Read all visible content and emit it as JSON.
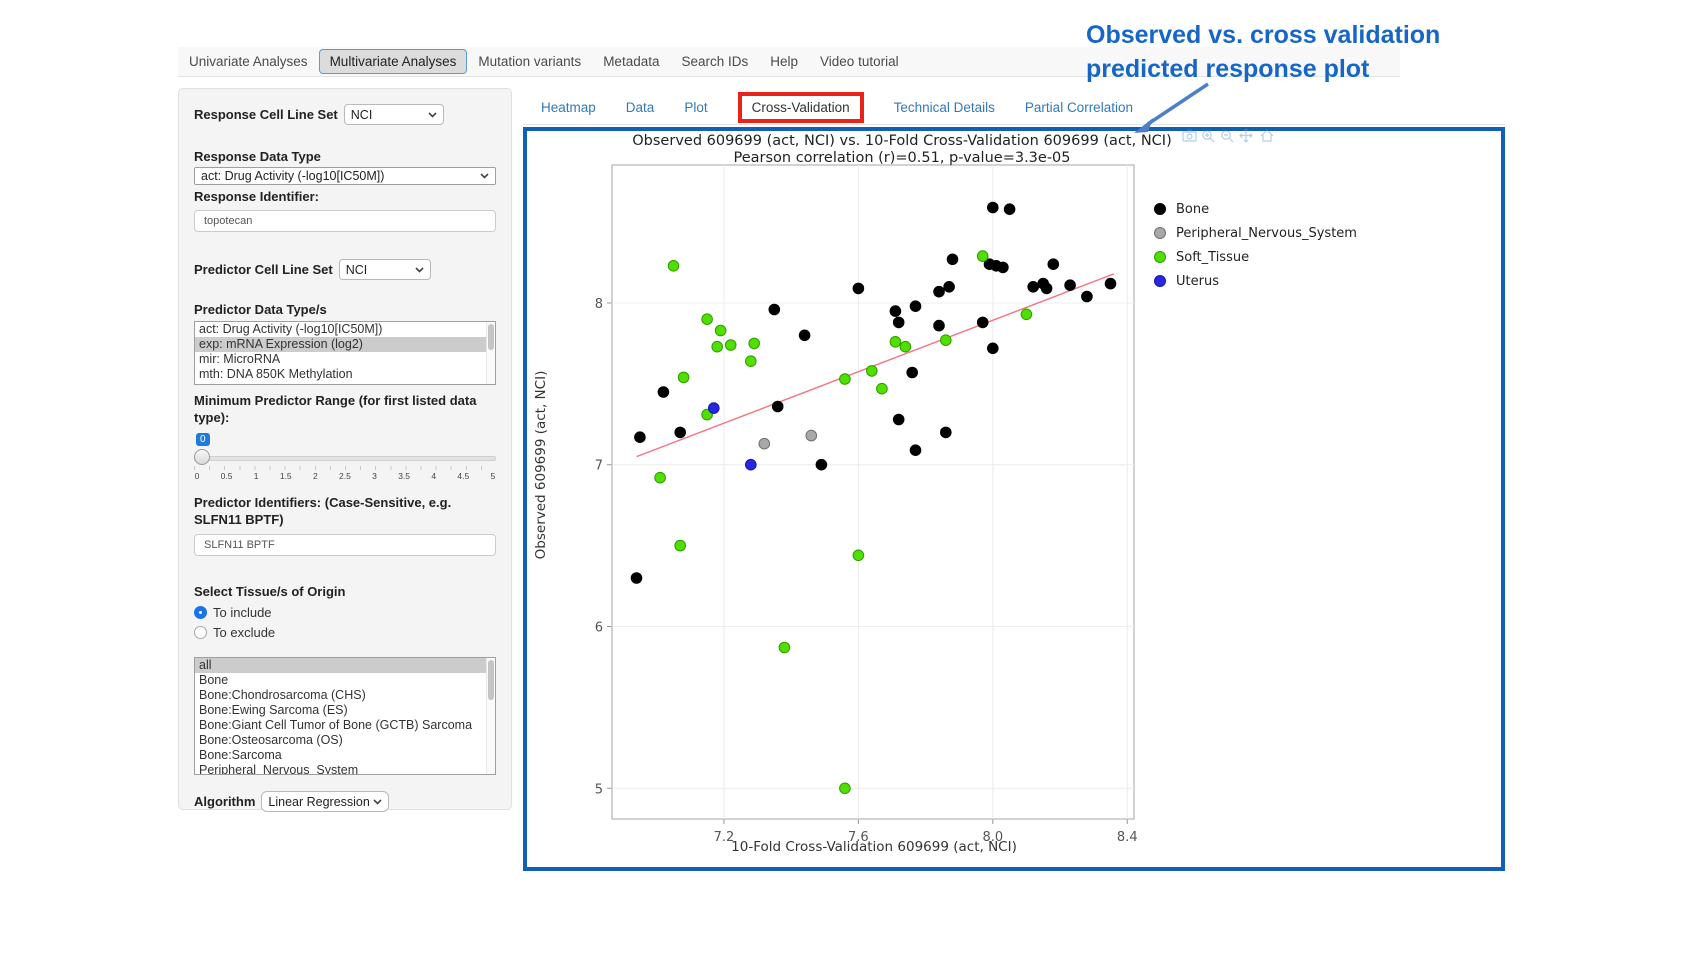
{
  "top_nav": {
    "tabs": [
      {
        "label": "Univariate Analyses",
        "active": false
      },
      {
        "label": "Multivariate Analyses",
        "active": true
      },
      {
        "label": "Mutation variants",
        "active": false
      },
      {
        "label": "Metadata",
        "active": false
      },
      {
        "label": "Search IDs",
        "active": false
      },
      {
        "label": "Help",
        "active": false
      },
      {
        "label": "Video tutorial",
        "active": false
      }
    ]
  },
  "sidebar": {
    "response_cell_line_set": {
      "label": "Response Cell Line Set",
      "value": "NCI"
    },
    "response_data_type": {
      "label": "Response Data Type",
      "value": "act: Drug Activity (-log10[IC50M])"
    },
    "response_identifier": {
      "label": "Response Identifier:",
      "value": "topotecan"
    },
    "predictor_cell_line_set": {
      "label": "Predictor Cell Line Set",
      "value": "NCI"
    },
    "predictor_data_types": {
      "label": "Predictor Data Type/s",
      "options": [
        "act: Drug Activity (-log10[IC50M])",
        "exp: mRNA Expression (log2)",
        "mir: MicroRNA",
        "mth: DNA 850K Methylation"
      ],
      "selected_index": 1
    },
    "min_predictor_range": {
      "label": "Minimum Predictor Range (for first listed data type):",
      "value": "0",
      "tick_labels": [
        "0",
        "0.5",
        "1",
        "1.5",
        "2",
        "2.5",
        "3",
        "3.5",
        "4",
        "4.5",
        "5"
      ]
    },
    "predictor_identifiers": {
      "label": "Predictor Identifiers: (Case-Sensitive, e.g. SLFN11 BPTF)",
      "value": "SLFN11 BPTF"
    },
    "tissue_origin": {
      "label": "Select Tissue/s of Origin",
      "radios": [
        {
          "label": "To include",
          "checked": true
        },
        {
          "label": "To exclude",
          "checked": false
        }
      ],
      "options": [
        "all",
        "Bone",
        "Bone:Chondrosarcoma (CHS)",
        "Bone:Ewing Sarcoma (ES)",
        "Bone:Giant Cell Tumor of Bone (GCTB) Sarcoma",
        "Bone:Osteosarcoma (OS)",
        "Bone:Sarcoma",
        "Peripheral_Nervous_System"
      ],
      "selected_index": 0
    },
    "algorithm": {
      "label": "Algorithm",
      "value": "Linear Regression"
    }
  },
  "result_tabs": {
    "tabs": [
      {
        "label": "Heatmap",
        "active": false
      },
      {
        "label": "Data",
        "active": false
      },
      {
        "label": "Plot",
        "active": false
      },
      {
        "label": "Cross-Validation",
        "active": true
      },
      {
        "label": "Technical Details",
        "active": false
      },
      {
        "label": "Partial Correlation",
        "active": false
      }
    ]
  },
  "annotation": {
    "line1": "Observed vs. cross validation",
    "line2": "predicted response plot"
  },
  "modebar_icons": [
    "camera-icon",
    "zoom-in-icon",
    "zoom-out-icon",
    "pan-icon",
    "home-icon"
  ],
  "colors": {
    "plot_box_border": "#1060b6",
    "active_tab_red_box": "#e8231a",
    "annotation_blue": "#1666c8",
    "tab_link_blue": "#3378b8",
    "slider_badge_blue": "#1f7ae0",
    "trend_line": "#f4727e"
  },
  "chart_data": {
    "type": "scatter",
    "title": "Observed 609699 (act, NCI) vs. 10-Fold Cross-Validation 609699 (act, NCI)",
    "subtitle": "Pearson correlation (r)=0.51, p-value=3.3e-05",
    "xlabel": "10-Fold Cross-Validation 609699 (act, NCI)",
    "ylabel": "Observed 609699 (act, NCI)",
    "xlim": [
      6.867,
      8.42
    ],
    "ylim": [
      4.81,
      8.853
    ],
    "xticks": [
      7.2,
      7.6,
      8.0,
      8.4
    ],
    "xtick_labels": [
      "7.2",
      "7.6",
      "8.0",
      "8.4"
    ],
    "yticks": [
      5,
      6,
      7,
      8
    ],
    "ytick_labels": [
      "5",
      "6",
      "7",
      "8"
    ],
    "grid": true,
    "legend_position": "right",
    "trend_line": {
      "color": "#f4727e",
      "x1": 6.94,
      "y1": 7.05,
      "x2": 8.36,
      "y2": 8.18
    },
    "series": [
      {
        "name": "Bone",
        "color": "#000000",
        "stroke": "#000000",
        "points": [
          [
            6.94,
            6.3
          ],
          [
            6.95,
            7.17
          ],
          [
            7.02,
            7.45
          ],
          [
            7.07,
            7.2
          ],
          [
            7.35,
            7.96
          ],
          [
            7.36,
            7.36
          ],
          [
            7.44,
            7.8
          ],
          [
            7.49,
            7.0
          ],
          [
            7.6,
            8.09
          ],
          [
            7.71,
            7.95
          ],
          [
            7.72,
            7.88
          ],
          [
            7.72,
            7.28
          ],
          [
            7.76,
            7.57
          ],
          [
            7.77,
            7.98
          ],
          [
            7.77,
            7.09
          ],
          [
            7.84,
            8.07
          ],
          [
            7.84,
            7.86
          ],
          [
            7.86,
            7.2
          ],
          [
            7.87,
            8.1
          ],
          [
            7.88,
            8.27
          ],
          [
            7.97,
            7.88
          ],
          [
            7.99,
            8.24
          ],
          [
            8.0,
            8.59
          ],
          [
            8.0,
            7.72
          ],
          [
            8.01,
            8.23
          ],
          [
            8.03,
            8.22
          ],
          [
            8.05,
            8.58
          ],
          [
            8.12,
            8.1
          ],
          [
            8.15,
            8.12
          ],
          [
            8.16,
            8.09
          ],
          [
            8.18,
            8.24
          ],
          [
            8.23,
            8.11
          ],
          [
            8.28,
            8.04
          ],
          [
            8.35,
            8.12
          ]
        ]
      },
      {
        "name": "Peripheral_Nervous_System",
        "color": "#a8a8a8",
        "stroke": "#6f6f6f",
        "points": [
          [
            7.32,
            7.13
          ],
          [
            7.46,
            7.18
          ]
        ]
      },
      {
        "name": "Soft_Tissue",
        "color": "#4fe000",
        "stroke": "#2f9a00",
        "points": [
          [
            7.05,
            8.23
          ],
          [
            7.15,
            7.9
          ],
          [
            7.18,
            7.73
          ],
          [
            7.19,
            7.83
          ],
          [
            7.22,
            7.74
          ],
          [
            7.29,
            7.75
          ],
          [
            7.28,
            7.64
          ],
          [
            7.08,
            7.54
          ],
          [
            7.15,
            7.31
          ],
          [
            7.01,
            6.92
          ],
          [
            7.07,
            6.5
          ],
          [
            7.38,
            5.87
          ],
          [
            7.56,
            5.0
          ],
          [
            7.56,
            7.53
          ],
          [
            7.6,
            6.44
          ],
          [
            7.64,
            7.58
          ],
          [
            7.67,
            7.47
          ],
          [
            7.71,
            7.76
          ],
          [
            7.74,
            7.73
          ],
          [
            7.86,
            7.77
          ],
          [
            7.97,
            8.29
          ],
          [
            8.1,
            7.93
          ]
        ]
      },
      {
        "name": "Uterus",
        "color": "#2727e0",
        "stroke": "#1717a8",
        "points": [
          [
            7.17,
            7.35
          ],
          [
            7.28,
            7.0
          ]
        ]
      }
    ]
  }
}
